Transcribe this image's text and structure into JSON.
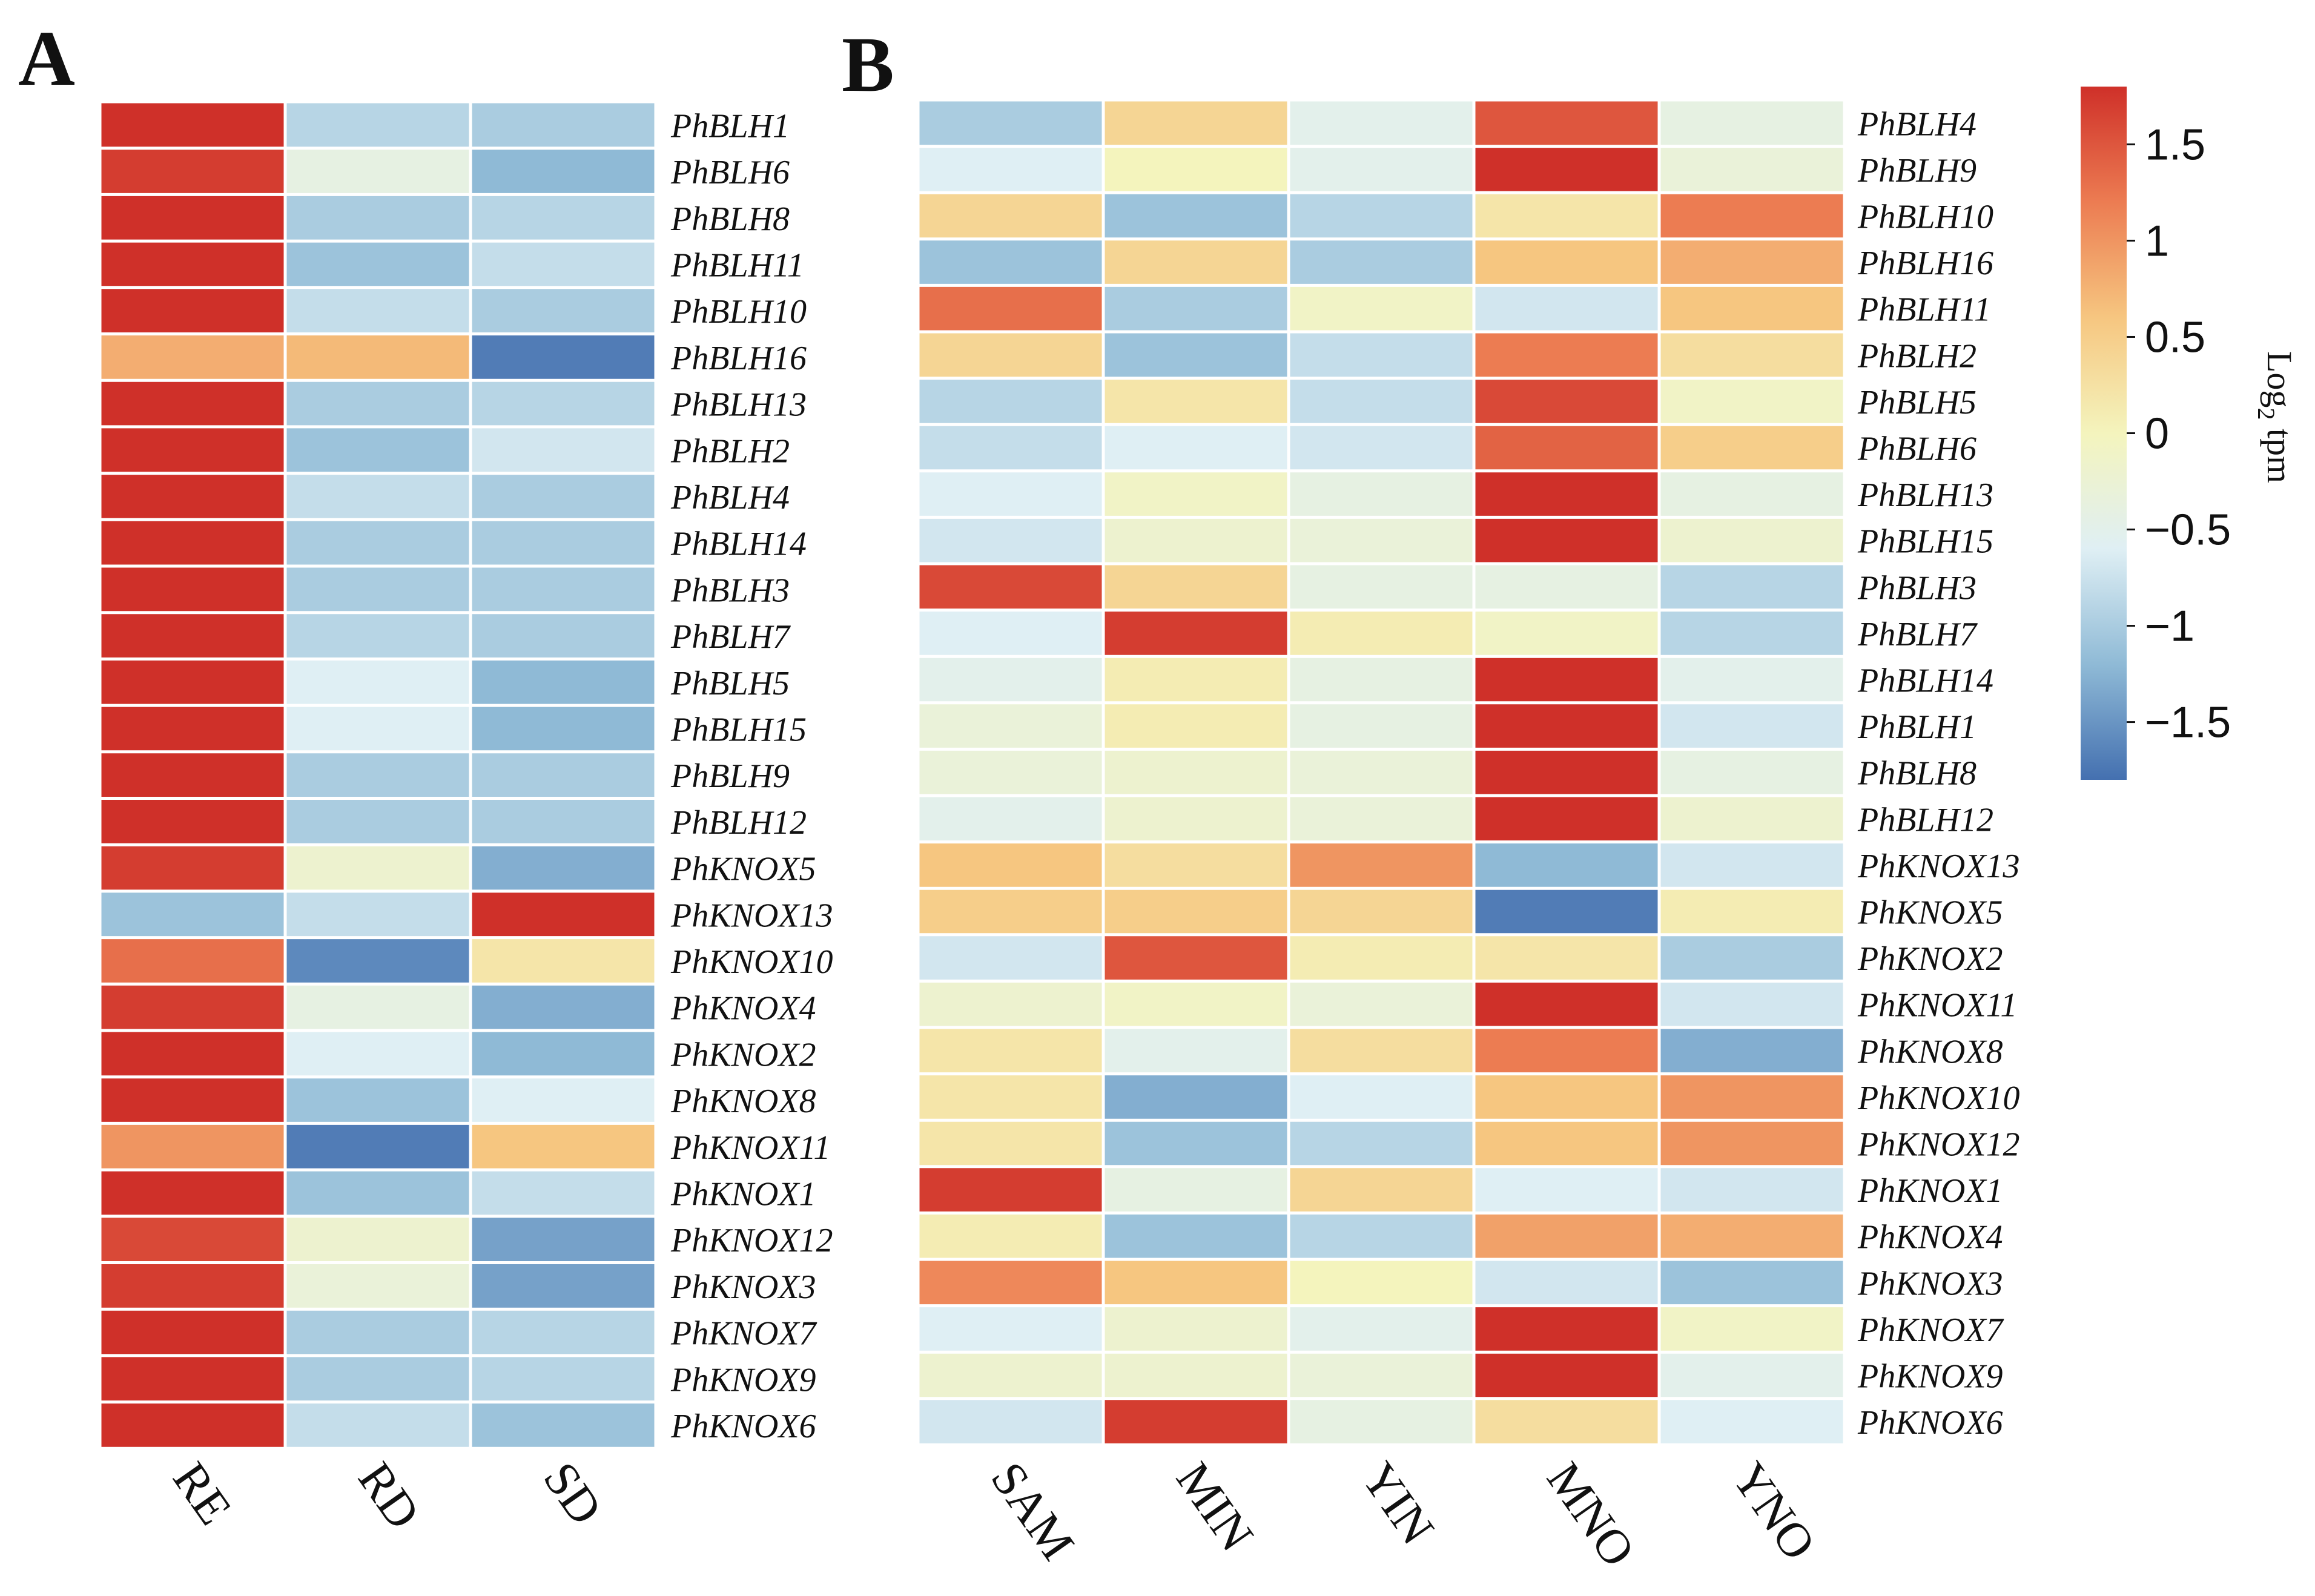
{
  "chart_data": [
    {
      "type": "heatmap",
      "panel": "A",
      "columns": [
        "RE",
        "RD",
        "SD"
      ],
      "rows": [
        "PhBLH1",
        "PhBLH6",
        "PhBLH8",
        "PhBLH11",
        "PhBLH10",
        "PhBLH16",
        "PhBLH13",
        "PhBLH2",
        "PhBLH4",
        "PhBLH14",
        "PhBLH3",
        "PhBLH7",
        "PhBLH5",
        "PhBLH15",
        "PhBLH9",
        "PhBLH12",
        "PhKNOX5",
        "PhKNOX13",
        "PhKNOX10",
        "PhKNOX4",
        "PhKNOX2",
        "PhKNOX8",
        "PhKNOX11",
        "PhKNOX1",
        "PhKNOX12",
        "PhKNOX3",
        "PhKNOX7",
        "PhKNOX9",
        "PhKNOX6"
      ],
      "values": [
        [
          1.8,
          -0.9,
          -1.0
        ],
        [
          1.7,
          -0.4,
          -1.2
        ],
        [
          1.8,
          -1.0,
          -0.9
        ],
        [
          1.8,
          -1.1,
          -0.8
        ],
        [
          1.8,
          -0.8,
          -1.0
        ],
        [
          0.8,
          0.7,
          -1.7
        ],
        [
          1.8,
          -1.0,
          -0.9
        ],
        [
          1.8,
          -1.1,
          -0.7
        ],
        [
          1.8,
          -0.8,
          -1.0
        ],
        [
          1.8,
          -1.0,
          -1.0
        ],
        [
          1.8,
          -1.0,
          -1.0
        ],
        [
          1.8,
          -0.9,
          -1.0
        ],
        [
          1.8,
          -0.6,
          -1.2
        ],
        [
          1.8,
          -0.6,
          -1.2
        ],
        [
          1.8,
          -1.0,
          -1.0
        ],
        [
          1.8,
          -1.0,
          -1.0
        ],
        [
          1.7,
          -0.2,
          -1.3
        ],
        [
          -1.1,
          -0.8,
          1.8
        ],
        [
          1.3,
          -1.6,
          0.2
        ],
        [
          1.7,
          -0.4,
          -1.3
        ],
        [
          1.8,
          -0.6,
          -1.2
        ],
        [
          1.8,
          -1.1,
          -0.6
        ],
        [
          1.0,
          -1.7,
          0.6
        ],
        [
          1.8,
          -1.1,
          -0.8
        ],
        [
          1.6,
          -0.2,
          -1.4
        ],
        [
          1.7,
          -0.3,
          -1.4
        ],
        [
          1.8,
          -1.0,
          -0.9
        ],
        [
          1.8,
          -1.0,
          -0.9
        ],
        [
          1.8,
          -0.8,
          -1.1
        ]
      ]
    },
    {
      "type": "heatmap",
      "panel": "B",
      "columns": [
        "SAM",
        "MIN",
        "YIN",
        "MNO",
        "YNO"
      ],
      "rows": [
        "PhBLH4",
        "PhBLH9",
        "PhBLH10",
        "PhBLH16",
        "PhBLH11",
        "PhBLH2",
        "PhBLH5",
        "PhBLH6",
        "PhBLH13",
        "PhBLH15",
        "PhBLH3",
        "PhBLH7",
        "PhBLH14",
        "PhBLH1",
        "PhBLH8",
        "PhBLH12",
        "PhKNOX13",
        "PhKNOX5",
        "PhKNOX2",
        "PhKNOX11",
        "PhKNOX8",
        "PhKNOX10",
        "PhKNOX12",
        "PhKNOX1",
        "PhKNOX4",
        "PhKNOX3",
        "PhKNOX7",
        "PhKNOX9",
        "PhKNOX6"
      ],
      "values": [
        [
          -1.0,
          0.4,
          -0.5,
          1.5,
          -0.4
        ],
        [
          -0.6,
          0.0,
          -0.5,
          1.8,
          -0.3
        ],
        [
          0.4,
          -1.1,
          -0.9,
          0.2,
          1.2
        ],
        [
          -1.1,
          0.4,
          -1.0,
          0.6,
          0.8
        ],
        [
          1.3,
          -1.0,
          -0.1,
          -0.7,
          0.6
        ],
        [
          0.4,
          -1.1,
          -0.8,
          1.2,
          0.3
        ],
        [
          -0.9,
          0.2,
          -0.8,
          1.6,
          -0.1
        ],
        [
          -0.8,
          -0.6,
          -0.7,
          1.4,
          0.5
        ],
        [
          -0.6,
          -0.1,
          -0.4,
          1.8,
          -0.4
        ],
        [
          -0.7,
          -0.2,
          -0.3,
          1.8,
          -0.2
        ],
        [
          1.6,
          0.4,
          -0.4,
          -0.4,
          -0.9
        ],
        [
          -0.6,
          1.7,
          0.1,
          -0.1,
          -0.9
        ],
        [
          -0.5,
          0.1,
          -0.4,
          1.8,
          -0.5
        ],
        [
          -0.3,
          0.1,
          -0.4,
          1.8,
          -0.7
        ],
        [
          -0.3,
          -0.2,
          -0.3,
          1.8,
          -0.4
        ],
        [
          -0.5,
          -0.2,
          -0.3,
          1.8,
          -0.2
        ],
        [
          0.6,
          0.3,
          1.0,
          -1.2,
          -0.7
        ],
        [
          0.5,
          0.5,
          0.4,
          -1.7,
          0.1
        ],
        [
          -0.7,
          1.5,
          0.1,
          0.2,
          -1.0
        ],
        [
          -0.2,
          -0.1,
          -0.3,
          1.8,
          -0.7
        ],
        [
          0.2,
          -0.5,
          0.3,
          1.2,
          -1.3
        ],
        [
          0.2,
          -1.3,
          -0.6,
          0.6,
          1.0
        ],
        [
          0.2,
          -1.1,
          -0.9,
          0.6,
          1.0
        ],
        [
          1.7,
          -0.4,
          0.4,
          -0.6,
          -0.7
        ],
        [
          0.1,
          -1.1,
          -0.9,
          0.9,
          0.8
        ],
        [
          1.1,
          0.6,
          0.0,
          -0.7,
          -1.1
        ],
        [
          -0.6,
          -0.2,
          -0.5,
          1.8,
          -0.1
        ],
        [
          -0.2,
          -0.2,
          -0.3,
          1.8,
          -0.5
        ],
        [
          -0.7,
          1.7,
          -0.4,
          0.3,
          -0.6
        ]
      ]
    }
  ],
  "colorbar": {
    "title_base": "Log",
    "title_subscript": "2",
    "title_rest": " tpm",
    "range": [
      -1.8,
      1.8
    ],
    "ticks": [
      1.5,
      1,
      0.5,
      0,
      -0.5,
      -1,
      -1.5
    ],
    "tick_labels": [
      "1.5",
      "1",
      "0.5",
      "0",
      "−0.5",
      "−1",
      "−1.5"
    ],
    "palette": [
      "#4470b0",
      "#8fbad6",
      "#dfeff4",
      "#f4f4bd",
      "#f6c680",
      "#ec7c52",
      "#cf3029"
    ]
  }
}
